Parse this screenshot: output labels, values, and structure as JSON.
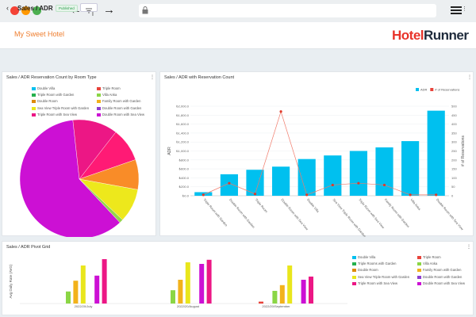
{
  "browser": {
    "back_glyph": "←",
    "forward_glyph": "→",
    "separator": "|",
    "traffic_colors": [
      "#f44336",
      "#ff9800",
      "#4caf50"
    ]
  },
  "header": {
    "hotel_name": "My Sweet Hotel",
    "logo_hotel": "Hotel",
    "logo_runner": "Runner"
  },
  "subheader": {
    "back_glyph": "‹",
    "title": "Sales / ADR",
    "status_badge": "Published"
  },
  "colors": {
    "Double Villa": "#00c0ef",
    "Triple Room": "#e8433a",
    "Triple Room with Garden": "#25b14e",
    "Villa Anka": "#8bd645",
    "Double Room": "#dd8a0d",
    "Family Room with Garden": "#f2b21b",
    "Sea View Triple Room with Garden": "#e9e61c",
    "Double Room with Garden": "#8e3fcf",
    "Triple Room with Sea View": "#ec1785",
    "Double Room with Sea View": "#cc10d4"
  },
  "pie_card": {
    "title": "Sales / ADR Reservation Count by Room Type",
    "legend": [
      "Double Villa",
      "Triple Room",
      "Triple Room with Garden",
      "Villa Anka",
      "Double Room",
      "Family Room with Garden",
      "Sea View Triple Room with Garden",
      "Double Room with Garden",
      "Triple Room with Sea View",
      "Double Room with Sea View"
    ]
  },
  "adr_card": {
    "title": "Sales / ADR with Reservation Count",
    "legend": [
      {
        "label": "ADR",
        "color": "#00c0ef"
      },
      {
        "label": "# of Reservations",
        "color": "#e8433a"
      }
    ]
  },
  "pivot_card": {
    "title": "Sales / ADR Pivot Grid",
    "legend": [
      "Double Villa",
      "Triple Room",
      "Triple Rooms with Garden",
      "Villa Anka",
      "Double Room",
      "Family Room with Garden",
      "Sea View Triple Room with Garden",
      "Double Room with Garden",
      "Triple Room with Sea View",
      "Double Room with Sea View"
    ],
    "legend_colors": [
      "#00c0ef",
      "#e8433a",
      "#25b14e",
      "#8bd645",
      "#dd8a0d",
      "#f2b21b",
      "#e9e61c",
      "#8e3fcf",
      "#ec1785",
      "#cc10d4"
    ]
  },
  "chart_data": [
    {
      "type": "pie",
      "title": "Sales / ADR Reservation Count by Room Type",
      "labels": [
        "Double Room with Sea View",
        "Triple Room with Sea View",
        "Triple Room with Garden",
        "Family Room with Garden",
        "Sea View Triple Room with Garden",
        "Villa Anka"
      ],
      "values": [
        59,
        12,
        9,
        8,
        9,
        1
      ],
      "colors": [
        "#cc10d4",
        "#ec1785",
        "#ff1a75",
        "#f98c28",
        "#ede81c",
        "#95d44a"
      ]
    },
    {
      "type": "bar",
      "title": "Sales / ADR with Reservation Count",
      "categories": [
        "Triple Room with Garden",
        "Double Room with Garden",
        "Triple Room",
        "Double Room with Sea View",
        "Double Villa",
        "Sea View Triple Room with Garden",
        "Triple Room with Sea View",
        "Family Room with Garden",
        "Villa Anka",
        "Double Room with Sea View"
      ],
      "series": [
        {
          "name": "ADR",
          "axis": "left",
          "values": [
            80,
            480,
            580,
            650,
            820,
            900,
            1000,
            1080,
            1220,
            1900
          ]
        },
        {
          "name": "# of Reservations",
          "axis": "right",
          "values": [
            5,
            70,
            10,
            470,
            5,
            60,
            70,
            60,
            5,
            5
          ]
        }
      ],
      "ylabel": "ADR",
      "y2label": "# of Reservations",
      "ylim": [
        0,
        2000
      ],
      "y2lim": [
        0,
        500
      ],
      "y_ticks": [
        "₺0.0",
        "₺200.0",
        "₺400.0",
        "₺600.0",
        "₺800.0",
        "₺1,000.0",
        "₺1,200.0",
        "₺1,400.0",
        "₺1,600.0",
        "₺1,800.0",
        "₺2,000.0"
      ],
      "y2_ticks": [
        "0",
        "50",
        "100",
        "150",
        "200",
        "250",
        "300",
        "350",
        "400",
        "450",
        "500"
      ],
      "legend_position": "top-right"
    },
    {
      "type": "bar",
      "title": "Sales / ADR Pivot Grid",
      "ylabel": "Avg Daily Rate (AVG)",
      "groups": [
        {
          "label": "2022/20/July",
          "bars": [
            {
              "color": "#8bd645",
              "value": 38
            },
            {
              "color": "#f2b21b",
              "value": 72
            },
            {
              "color": "#e9e61c",
              "value": 120
            },
            {
              "color": "#cc10d4",
              "value": 88
            },
            {
              "color": "#ec1785",
              "value": 140
            }
          ]
        },
        {
          "label": "2022/20/August",
          "bars": [
            {
              "color": "#8bd645",
              "value": 42
            },
            {
              "color": "#f2b21b",
              "value": 75
            },
            {
              "color": "#e9e61c",
              "value": 130
            },
            {
              "color": "#cc10d4",
              "value": 125
            },
            {
              "color": "#ec1785",
              "value": 138
            }
          ]
        },
        {
          "label": "2022/20/September",
          "bars": [
            {
              "color": "#e8433a",
              "value": 6
            },
            {
              "color": "#8bd645",
              "value": 40
            },
            {
              "color": "#f2b21b",
              "value": 58
            },
            {
              "color": "#e9e61c",
              "value": 120
            },
            {
              "color": "#cc10d4",
              "value": 75
            },
            {
              "color": "#ec1785",
              "value": 85
            }
          ]
        }
      ],
      "ylim": [
        0,
        150
      ]
    }
  ]
}
